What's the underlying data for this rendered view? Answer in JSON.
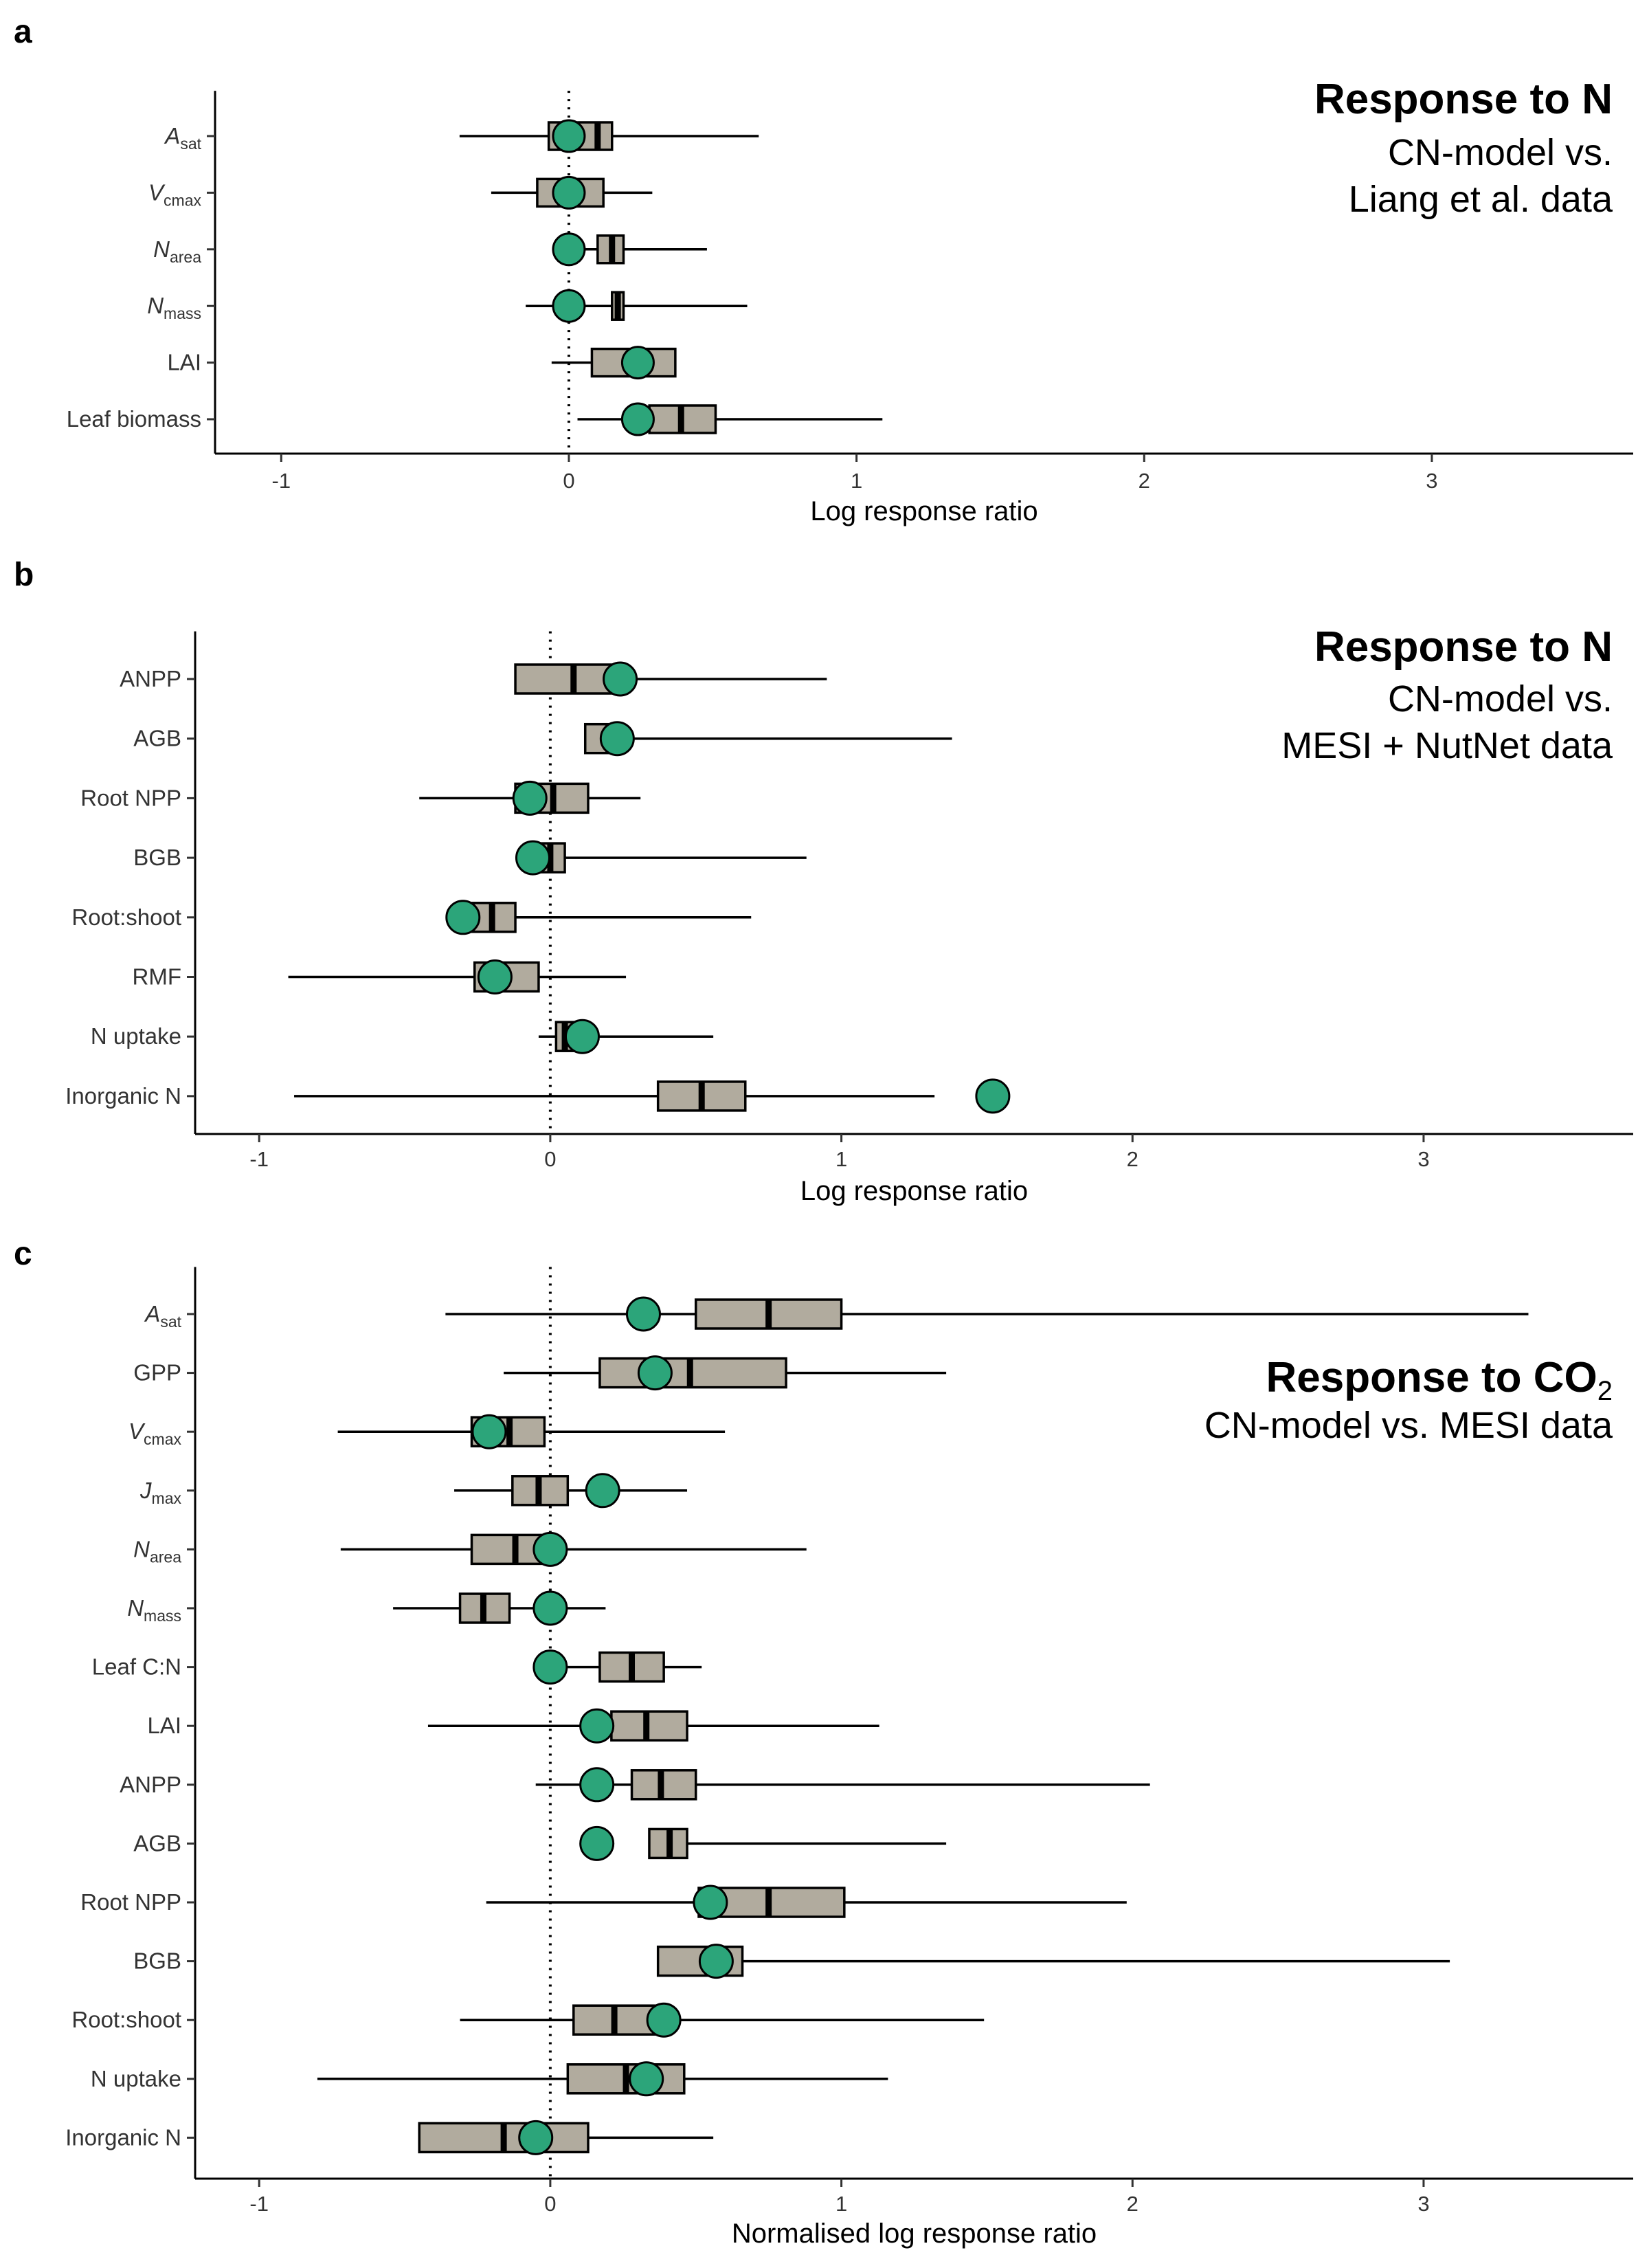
{
  "colors": {
    "box_fill": "#b1ab9e",
    "model_point": "#2ca57a",
    "line": "#000000"
  },
  "chart_data": [
    {
      "panel": "a",
      "type": "boxplot",
      "title": "Response to N",
      "subtitle_lines": [
        "CN-model vs.",
        "Liang et al. data"
      ],
      "xlabel": "Log response ratio",
      "xlim": [
        -1.23,
        3.7
      ],
      "xticks": [
        "-1",
        "0",
        "1",
        "2",
        "3"
      ],
      "reference_line": 0,
      "categories": [
        {
          "label": "A",
          "sub": "sat",
          "italic": true,
          "whisker_low": -0.38,
          "q1": -0.07,
          "median": 0.1,
          "q3": 0.15,
          "whisker_high": 0.66,
          "model": 0.0
        },
        {
          "label": "V",
          "sub": "cmax",
          "italic": true,
          "whisker_low": -0.27,
          "q1": -0.11,
          "median": 0.0,
          "q3": 0.12,
          "whisker_high": 0.29,
          "model": 0.0
        },
        {
          "label": "N",
          "sub": "area",
          "italic": true,
          "whisker_low": -0.04,
          "q1": 0.1,
          "median": 0.15,
          "q3": 0.19,
          "whisker_high": 0.48,
          "model": 0.0
        },
        {
          "label": "N",
          "sub": "mass",
          "italic": true,
          "whisker_low": -0.15,
          "q1": 0.15,
          "median": 0.17,
          "q3": 0.19,
          "whisker_high": 0.62,
          "model": 0.0
        },
        {
          "label": "LAI",
          "sub": "",
          "italic": false,
          "whisker_low": -0.06,
          "q1": 0.08,
          "median": 0.24,
          "q3": 0.37,
          "whisker_high": 0.37,
          "model": 0.24
        },
        {
          "label": "Leaf biomass",
          "sub": "",
          "italic": false,
          "whisker_low": 0.03,
          "q1": 0.28,
          "median": 0.39,
          "q3": 0.51,
          "whisker_high": 1.09,
          "model": 0.24
        }
      ]
    },
    {
      "panel": "b",
      "type": "boxplot",
      "title": "Response to N",
      "subtitle_lines": [
        "CN-model vs.",
        "MESI + NutNet data"
      ],
      "xlabel": "Log response ratio",
      "xlim": [
        -1.22,
        3.72
      ],
      "xticks": [
        "-1",
        "0",
        "1",
        "2",
        "3"
      ],
      "reference_line": 0,
      "categories": [
        {
          "label": "ANPP",
          "sub": "",
          "italic": false,
          "whisker_low": -0.12,
          "q1": -0.12,
          "median": 0.08,
          "q3": 0.24,
          "whisker_high": 0.95,
          "model": 0.24
        },
        {
          "label": "AGB",
          "sub": "",
          "italic": false,
          "whisker_low": 0.12,
          "q1": 0.12,
          "median": 0.2,
          "q3": 0.23,
          "whisker_high": 1.38,
          "model": 0.23
        },
        {
          "label": "Root NPP",
          "sub": "",
          "italic": false,
          "whisker_low": -0.45,
          "q1": -0.12,
          "median": 0.01,
          "q3": 0.13,
          "whisker_high": 0.31,
          "model": -0.07
        },
        {
          "label": "BGB",
          "sub": "",
          "italic": false,
          "whisker_low": -0.06,
          "q1": -0.06,
          "median": 0.0,
          "q3": 0.05,
          "whisker_high": 0.88,
          "model": -0.06
        },
        {
          "label": "Root:shoot",
          "sub": "",
          "italic": false,
          "whisker_low": -0.3,
          "q1": -0.3,
          "median": -0.2,
          "q3": -0.12,
          "whisker_high": 0.69,
          "model": -0.3
        },
        {
          "label": "RMF",
          "sub": "",
          "italic": false,
          "whisker_low": -0.9,
          "q1": -0.26,
          "median": -0.17,
          "q3": -0.04,
          "whisker_high": 0.26,
          "model": -0.19
        },
        {
          "label": "N uptake",
          "sub": "",
          "italic": false,
          "whisker_low": -0.04,
          "q1": 0.02,
          "median": 0.05,
          "q3": 0.1,
          "whisker_high": 0.56,
          "model": 0.11
        },
        {
          "label": "Inorganic N",
          "sub": "",
          "italic": false,
          "whisker_low": -0.88,
          "q1": 0.37,
          "median": 0.52,
          "q3": 0.67,
          "whisker_high": 1.32,
          "model": 1.52
        }
      ]
    },
    {
      "panel": "c",
      "type": "boxplot",
      "title": "Response to CO",
      "title_subscript": "2",
      "subtitle_lines": [
        "CN-model vs. MESI data"
      ],
      "xlabel": "Normalised log response ratio",
      "xlim": [
        -1.22,
        3.72
      ],
      "xticks": [
        "-1",
        "0",
        "1",
        "2",
        "3"
      ],
      "reference_line": 0,
      "categories": [
        {
          "label": "A",
          "sub": "sat",
          "italic": true,
          "whisker_low": -0.36,
          "q1": 0.5,
          "median": 0.75,
          "q3": 1.0,
          "whisker_high": 3.36,
          "model": 0.32
        },
        {
          "label": "GPP",
          "sub": "",
          "italic": false,
          "whisker_low": -0.16,
          "q1": 0.17,
          "median": 0.48,
          "q3": 0.81,
          "whisker_high": 1.36,
          "model": 0.36
        },
        {
          "label": "V",
          "sub": "cmax",
          "italic": true,
          "whisker_low": -0.73,
          "q1": -0.27,
          "median": -0.14,
          "q3": -0.02,
          "whisker_high": 0.6,
          "model": -0.21
        },
        {
          "label": "J",
          "sub": "max",
          "italic": true,
          "whisker_low": -0.33,
          "q1": -0.13,
          "median": -0.04,
          "q3": 0.06,
          "whisker_high": 0.47,
          "model": 0.18
        },
        {
          "label": "N",
          "sub": "area",
          "italic": true,
          "whisker_low": -0.72,
          "q1": -0.27,
          "median": -0.12,
          "q3": 0.02,
          "whisker_high": 0.88,
          "model": 0.0
        },
        {
          "label": "N",
          "sub": "mass",
          "italic": true,
          "whisker_low": -0.54,
          "q1": -0.31,
          "median": -0.23,
          "q3": -0.14,
          "whisker_high": 0.19,
          "model": 0.0
        },
        {
          "label": "Leaf C:N",
          "sub": "",
          "italic": false,
          "whisker_low": 0.0,
          "q1": 0.17,
          "median": 0.28,
          "q3": 0.39,
          "whisker_high": 0.52,
          "model": 0.0
        },
        {
          "label": "LAI",
          "sub": "",
          "italic": false,
          "whisker_low": -0.42,
          "q1": 0.21,
          "median": 0.33,
          "q3": 0.47,
          "whisker_high": 1.13,
          "model": 0.16
        },
        {
          "label": "ANPP",
          "sub": "",
          "italic": false,
          "whisker_low": -0.05,
          "q1": 0.28,
          "median": 0.38,
          "q3": 0.5,
          "whisker_high": 2.06,
          "model": 0.16
        },
        {
          "label": "AGB",
          "sub": "",
          "italic": false,
          "whisker_low": 0.34,
          "q1": 0.34,
          "median": 0.41,
          "q3": 0.47,
          "whisker_high": 1.36,
          "model": 0.16
        },
        {
          "label": "Root NPP",
          "sub": "",
          "italic": false,
          "whisker_low": -0.22,
          "q1": 0.51,
          "median": 0.75,
          "q3": 1.01,
          "whisker_high": 1.98,
          "model": 0.55
        },
        {
          "label": "BGB",
          "sub": "",
          "italic": false,
          "whisker_low": 0.37,
          "q1": 0.37,
          "median": 0.57,
          "q3": 0.66,
          "whisker_high": 3.09,
          "model": 0.57
        },
        {
          "label": "Root:shoot",
          "sub": "",
          "italic": false,
          "whisker_low": -0.31,
          "q1": 0.08,
          "median": 0.22,
          "q3": 0.39,
          "whisker_high": 1.49,
          "model": 0.39
        },
        {
          "label": "N uptake",
          "sub": "",
          "italic": false,
          "whisker_low": -0.8,
          "q1": 0.06,
          "median": 0.26,
          "q3": 0.46,
          "whisker_high": 1.16,
          "model": 0.33
        },
        {
          "label": "Inorganic N",
          "sub": "",
          "italic": false,
          "whisker_low": -0.45,
          "q1": -0.45,
          "median": -0.16,
          "q3": 0.13,
          "whisker_high": 0.56,
          "model": -0.05
        }
      ]
    }
  ]
}
